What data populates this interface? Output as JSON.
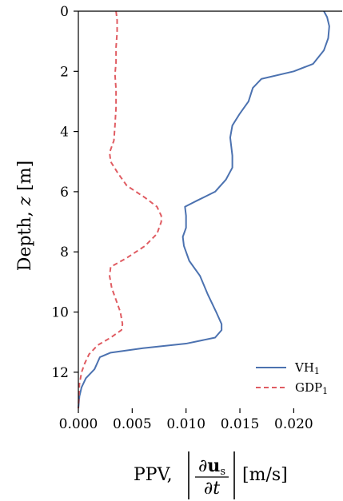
{
  "chart_data": {
    "type": "line",
    "orientation": "x-value-y-depth",
    "xlabel": {
      "prefix": "PPV,",
      "numerator_d": "∂",
      "numerator_u": "u",
      "numerator_sub": "s",
      "denominator": "∂t",
      "unit": "[m/s]"
    },
    "ylabel": {
      "prefix": "Depth,",
      "var": "z",
      "unit": "[m]"
    },
    "xlim": [
      0,
      0.0245
    ],
    "ylim": [
      13.2,
      0
    ],
    "y_inverted": true,
    "xticks": [
      0.0,
      0.005,
      0.01,
      0.015,
      0.02
    ],
    "xtick_labels": [
      "0.000",
      "0.005",
      "0.010",
      "0.015",
      "0.020"
    ],
    "yticks": [
      0,
      2,
      4,
      6,
      8,
      10,
      12
    ],
    "ytick_labels": [
      "0",
      "2",
      "4",
      "6",
      "8",
      "10",
      "12"
    ],
    "grid": false,
    "legend_position": "bottom-right",
    "series": [
      {
        "name": "VH",
        "name_sub": "1",
        "color": "#4C72B0",
        "style": "solid",
        "points": [
          [
            0.0228,
            0.0
          ],
          [
            0.0231,
            0.2
          ],
          [
            0.0233,
            0.5
          ],
          [
            0.0232,
            0.9
          ],
          [
            0.0228,
            1.3
          ],
          [
            0.0218,
            1.75
          ],
          [
            0.02,
            2.0
          ],
          [
            0.017,
            2.25
          ],
          [
            0.0162,
            2.55
          ],
          [
            0.0158,
            3.0
          ],
          [
            0.015,
            3.4
          ],
          [
            0.0143,
            3.8
          ],
          [
            0.0141,
            4.2
          ],
          [
            0.0142,
            4.5
          ],
          [
            0.0143,
            4.8
          ],
          [
            0.0143,
            5.2
          ],
          [
            0.0137,
            5.6
          ],
          [
            0.0127,
            6.0
          ],
          [
            0.011,
            6.3
          ],
          [
            0.0099,
            6.5
          ],
          [
            0.01,
            6.8
          ],
          [
            0.01,
            7.2
          ],
          [
            0.0097,
            7.5
          ],
          [
            0.0098,
            7.8
          ],
          [
            0.0103,
            8.3
          ],
          [
            0.0113,
            8.8
          ],
          [
            0.012,
            9.4
          ],
          [
            0.0128,
            10.0
          ],
          [
            0.0133,
            10.4
          ],
          [
            0.0133,
            10.6
          ],
          [
            0.0127,
            10.85
          ],
          [
            0.01,
            11.05
          ],
          [
            0.006,
            11.2
          ],
          [
            0.003,
            11.35
          ],
          [
            0.002,
            11.5
          ],
          [
            0.0015,
            11.9
          ],
          [
            0.0007,
            12.2
          ],
          [
            0.0003,
            12.5
          ],
          [
            0.0001,
            12.8
          ],
          [
            0.0,
            13.2
          ]
        ]
      },
      {
        "name": "GDP",
        "name_sub": "1",
        "color": "#E05C62",
        "style": "dashed",
        "points": [
          [
            0.0035,
            0.0
          ],
          [
            0.0036,
            0.3
          ],
          [
            0.0036,
            0.7
          ],
          [
            0.0035,
            1.2
          ],
          [
            0.0035,
            1.7
          ],
          [
            0.0034,
            2.1
          ],
          [
            0.0035,
            2.6
          ],
          [
            0.0035,
            3.2
          ],
          [
            0.0034,
            3.8
          ],
          [
            0.0033,
            4.3
          ],
          [
            0.0029,
            4.7
          ],
          [
            0.003,
            5.0
          ],
          [
            0.0037,
            5.4
          ],
          [
            0.0045,
            5.8
          ],
          [
            0.0062,
            6.2
          ],
          [
            0.0073,
            6.5
          ],
          [
            0.0077,
            6.8
          ],
          [
            0.0077,
            7.0
          ],
          [
            0.0073,
            7.4
          ],
          [
            0.0062,
            7.8
          ],
          [
            0.0045,
            8.2
          ],
          [
            0.003,
            8.5
          ],
          [
            0.0029,
            8.8
          ],
          [
            0.0031,
            9.2
          ],
          [
            0.0035,
            9.6
          ],
          [
            0.0039,
            10.0
          ],
          [
            0.0041,
            10.4
          ],
          [
            0.004,
            10.6
          ],
          [
            0.003,
            10.85
          ],
          [
            0.0018,
            11.1
          ],
          [
            0.001,
            11.4
          ],
          [
            0.0006,
            11.7
          ],
          [
            0.0003,
            12.0
          ],
          [
            0.0001,
            12.4
          ],
          [
            0.0,
            13.2
          ]
        ]
      }
    ]
  }
}
